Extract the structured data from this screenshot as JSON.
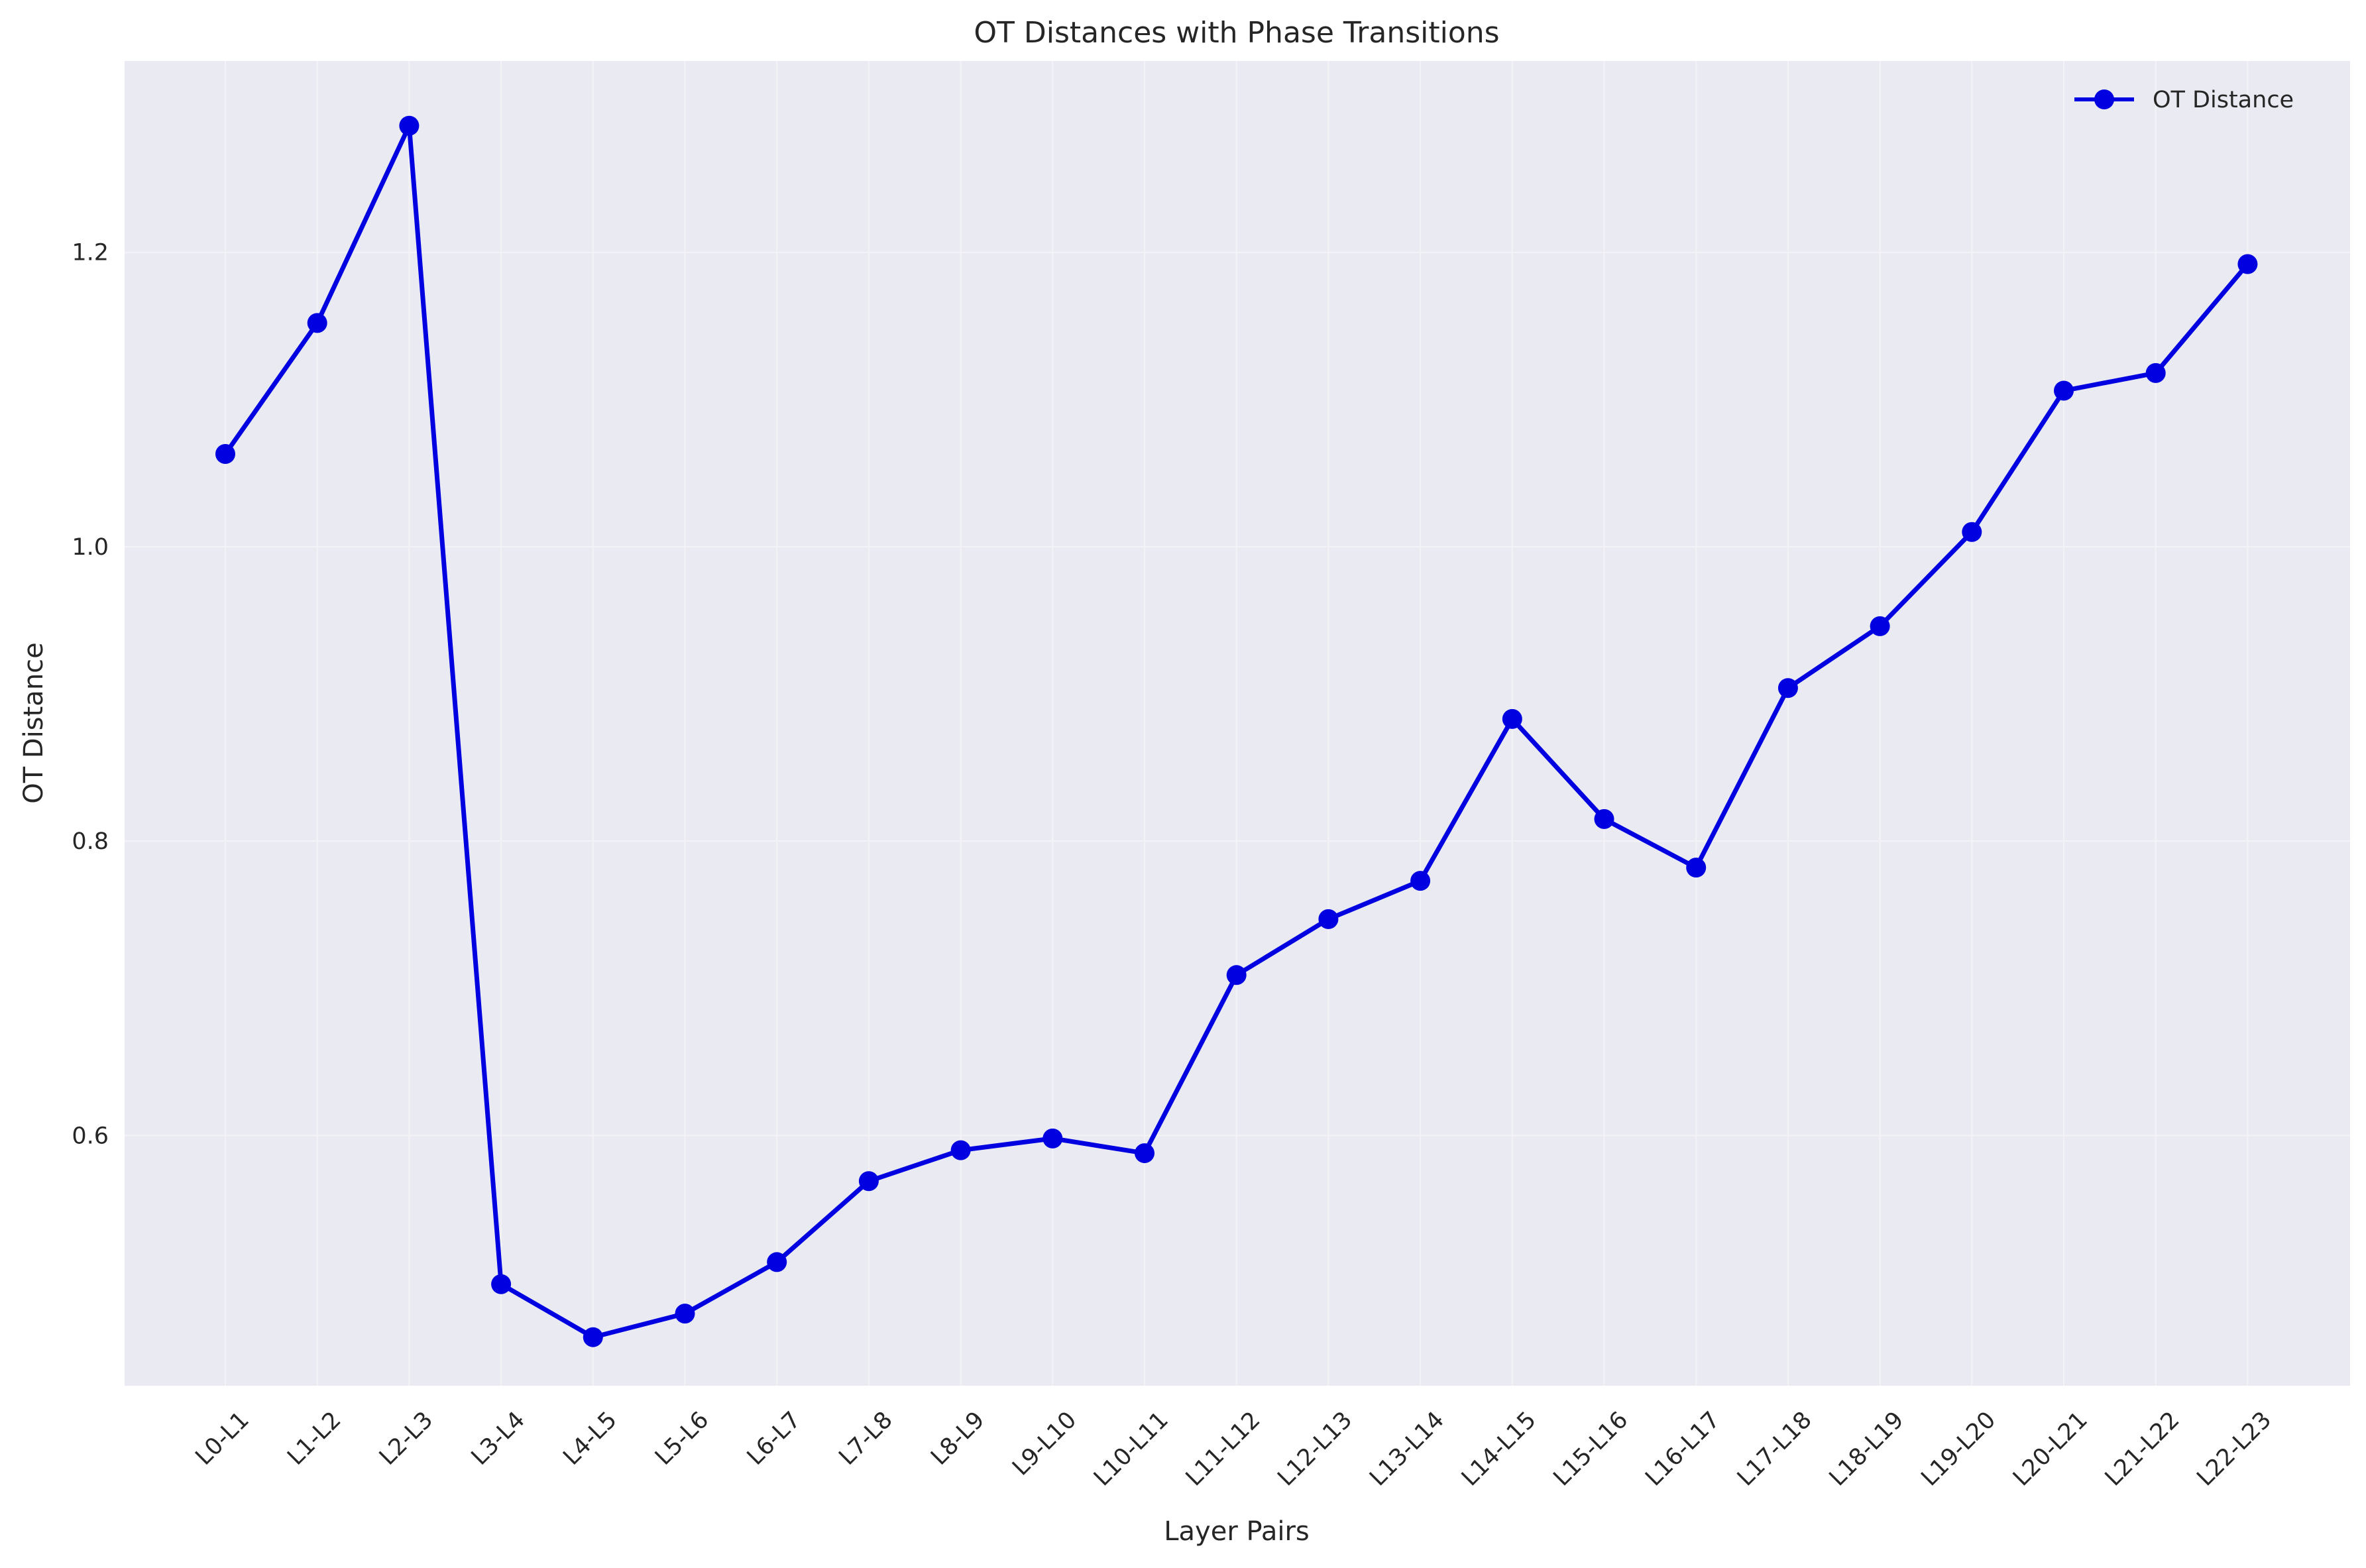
{
  "chart_data": {
    "type": "line",
    "title": "OT Distances with Phase Transitions",
    "xlabel": "Layer Pairs",
    "ylabel": "OT Distance",
    "categories": [
      "L0-L1",
      "L1-L2",
      "L2-L3",
      "L3-L4",
      "L4-L5",
      "L5-L6",
      "L6-L7",
      "L7-L8",
      "L8-L9",
      "L9-L10",
      "L10-L11",
      "L11-L12",
      "L12-L13",
      "L13-L14",
      "L14-L15",
      "L15-L16",
      "L16-L17",
      "L17-L18",
      "L18-L19",
      "L19-L20",
      "L20-L21",
      "L21-L22",
      "L22-L23"
    ],
    "series": [
      {
        "name": "OT Distance",
        "color": "#0000e0",
        "marker": "circle",
        "values": [
          1.063,
          1.152,
          1.286,
          0.499,
          0.463,
          0.479,
          0.514,
          0.569,
          0.59,
          0.598,
          0.588,
          0.709,
          0.747,
          0.773,
          0.883,
          0.815,
          0.782,
          0.904,
          0.946,
          1.01,
          1.106,
          1.118,
          1.192
        ]
      }
    ],
    "ylim": [
      0.43,
      1.33
    ],
    "yticks": [
      0.6,
      0.8,
      1.0,
      1.2
    ],
    "ytick_labels": [
      "0.6",
      "0.8",
      "1.0",
      "1.2"
    ],
    "grid": true,
    "legend_position": "top-right",
    "background_color": "#eaeaf2",
    "grid_color": "#f3f3f7"
  }
}
